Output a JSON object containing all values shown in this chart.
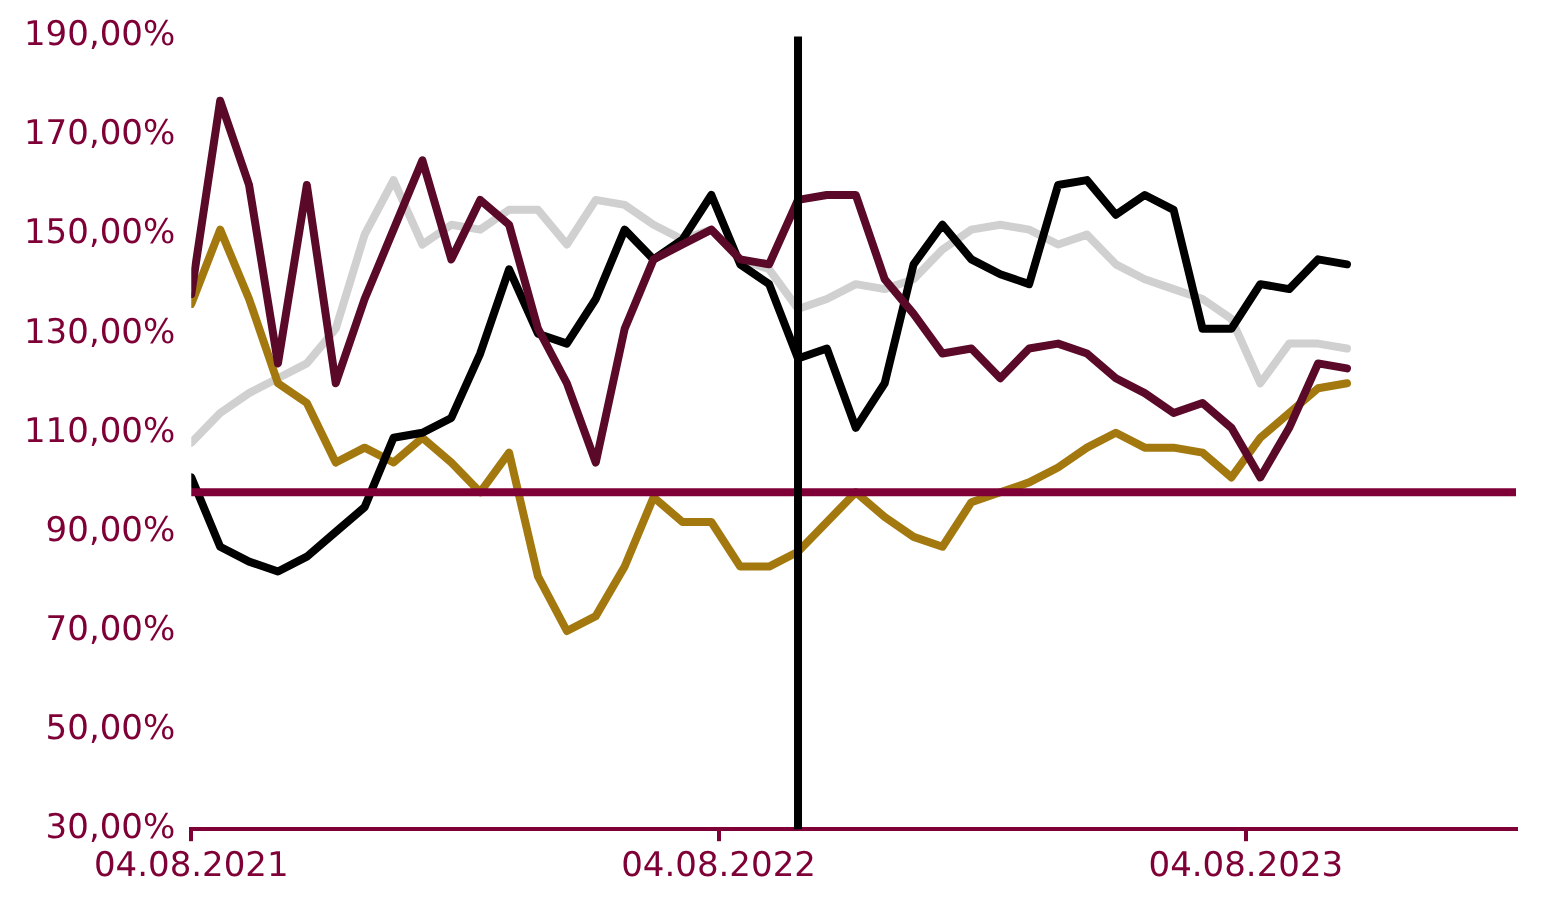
{
  "chart_data": {
    "type": "line",
    "x": [
      "2021-08-04",
      "2021-08-24",
      "2021-09-13",
      "2021-10-03",
      "2021-10-23",
      "2021-11-12",
      "2021-12-02",
      "2021-12-22",
      "2022-01-11",
      "2022-01-31",
      "2022-02-20",
      "2022-03-12",
      "2022-04-01",
      "2022-04-21",
      "2022-05-11",
      "2022-05-31",
      "2022-06-20",
      "2022-07-10",
      "2022-07-30",
      "2022-08-19",
      "2022-09-08",
      "2022-09-28",
      "2022-10-18",
      "2022-11-07",
      "2022-11-27",
      "2022-12-17",
      "2023-01-06",
      "2023-01-26",
      "2023-02-15",
      "2023-03-07",
      "2023-03-27",
      "2023-04-16",
      "2023-05-06",
      "2023-05-26",
      "2023-06-15",
      "2023-07-05",
      "2023-07-25",
      "2023-08-14",
      "2023-09-03",
      "2023-09-23",
      "2023-10-13"
    ],
    "series": [
      {
        "color": "#d0d0d0",
        "values": [
          108,
          114,
          118,
          121,
          124,
          131,
          150,
          161,
          148,
          152,
          151,
          155,
          155,
          148,
          157,
          156,
          152,
          149,
          151,
          145,
          143,
          135,
          137,
          140,
          139,
          141,
          147,
          151,
          152,
          151,
          148,
          150,
          144,
          141,
          139,
          137,
          133,
          120,
          128,
          128,
          127
        ]
      },
      {
        "color": "#a3790f",
        "values": [
          136,
          151,
          137,
          120,
          116,
          104,
          107,
          104,
          109,
          104,
          98,
          106,
          81,
          70,
          73,
          83,
          97,
          92,
          92,
          83,
          83,
          86,
          92,
          98,
          93,
          89,
          87,
          96,
          98,
          100,
          103,
          107,
          110,
          107,
          107,
          106,
          101,
          109,
          114,
          119,
          120
        ]
      },
      {
        "color": "#000000",
        "values": [
          101,
          87,
          84,
          82,
          85,
          90,
          95,
          109,
          110,
          113,
          126,
          143,
          130,
          128,
          137,
          151,
          145,
          149,
          158,
          144,
          140,
          125,
          127,
          111,
          120,
          144,
          152,
          145,
          142,
          140,
          160,
          161,
          154,
          158,
          155,
          131,
          131,
          140,
          139,
          145,
          144
        ]
      },
      {
        "color": "#5a0a28",
        "values": [
          138,
          177,
          160,
          124,
          160,
          120,
          137,
          151,
          165,
          145,
          157,
          152,
          131,
          120,
          104,
          131,
          145,
          148,
          151,
          145,
          144,
          157,
          158,
          158,
          141,
          134,
          126,
          127,
          121,
          127,
          128,
          126,
          121,
          118,
          114,
          116,
          111,
          101,
          111,
          124,
          123
        ]
      }
    ],
    "xlim": [
      "2021-08-04",
      "2024-02-07"
    ],
    "xticks": [
      {
        "value": "2021-08-04",
        "label": "04.08.2021"
      },
      {
        "value": "2022-08-04",
        "label": "04.08.2022"
      },
      {
        "value": "2023-08-04",
        "label": "04.08.2023"
      }
    ],
    "ylim": [
      30,
      190
    ],
    "yticks": [
      {
        "value": 30,
        "label": "30,00%"
      },
      {
        "value": 50,
        "label": "50,00%"
      },
      {
        "value": 70,
        "label": "70,00%"
      },
      {
        "value": 90,
        "label": "90,00%"
      },
      {
        "value": 110,
        "label": "110,00%"
      },
      {
        "value": 130,
        "label": "130,00%"
      },
      {
        "value": 150,
        "label": "150,00%"
      },
      {
        "value": 170,
        "label": "170,00%"
      },
      {
        "value": 190,
        "label": "190,00%"
      }
    ],
    "ref_lines": [
      {
        "axis": "y",
        "value": 98,
        "color": "#7f0037"
      },
      {
        "axis": "x",
        "value": "2022-09-28",
        "color": "#000000"
      }
    ],
    "grid": false,
    "legend": false,
    "marker": "none",
    "line_style": "solid"
  }
}
